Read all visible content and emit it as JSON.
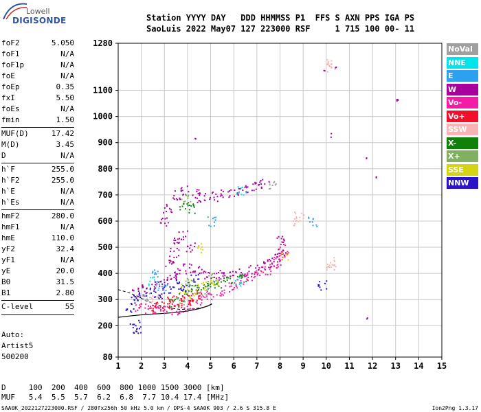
{
  "logo": {
    "line1": "Lowell",
    "line2": "DIGISONDE"
  },
  "header": {
    "labels": "Station YYYY DAY   DDD HHMMSS P1  FFS S AXN PPS IGA PS",
    "values": "SaoLuis 2022 May07 127 223000 RSF     1 715 100 00- 11"
  },
  "params": [
    {
      "name": "foF2",
      "value": "5.050"
    },
    {
      "name": "foF1",
      "value": "N/A"
    },
    {
      "name": "foF1p",
      "value": "N/A"
    },
    {
      "name": "foE",
      "value": "N/A"
    },
    {
      "name": "foEp",
      "value": "0.35"
    },
    {
      "name": "fxI",
      "value": "5.50"
    },
    {
      "name": "foEs",
      "value": "N/A"
    },
    {
      "name": "fmin",
      "value": "1.50"
    },
    {
      "name": "MUF(D)",
      "value": "17.42"
    },
    {
      "name": "M(D)",
      "value": "3.45"
    },
    {
      "name": "D",
      "value": "N/A"
    },
    {
      "name": "h`F",
      "value": "255.0"
    },
    {
      "name": "h`F2",
      "value": "255.0"
    },
    {
      "name": "h`E",
      "value": "N/A"
    },
    {
      "name": "h`Es",
      "value": "N/A"
    },
    {
      "name": "hmF2",
      "value": "280.0"
    },
    {
      "name": "hmF1",
      "value": "N/A"
    },
    {
      "name": "hmE",
      "value": "110.0"
    },
    {
      "name": "yF2",
      "value": "32.4"
    },
    {
      "name": "yF1",
      "value": "N/A"
    },
    {
      "name": "yE",
      "value": "20.0"
    },
    {
      "name": "B0",
      "value": "31.5"
    },
    {
      "name": "B1",
      "value": "2.80"
    },
    {
      "name": "C-level",
      "value": "55"
    }
  ],
  "auto": {
    "line1": "Auto:",
    "line2": "Artist5",
    "line3": "500200"
  },
  "muf_table": {
    "d_line": "D     100  200  400  600  800 1000 1500 3000 [km]",
    "muf_line": "MUF   5.4  5.5  5.7  6.2  6.8  7.7 10.4 17.4 [MHz]"
  },
  "footer": {
    "left": "SAA0K_2022127223000.RSF / 280fx256h 50 kHz 5.0 km / DPS-4 SAA0K 903 / 2.6 S 315.8 E",
    "right": "Ion2Png 1.3.17"
  },
  "legend": [
    {
      "label": "NoVal",
      "color": "#a0a0a0"
    },
    {
      "label": "NNE",
      "color": "#00e4ec"
    },
    {
      "label": "E",
      "color": "#2ea0f0"
    },
    {
      "label": "W",
      "color": "#a8009c"
    },
    {
      "label": "Vo-",
      "color": "#f21ca6"
    },
    {
      "label": "Vo+",
      "color": "#f0102c"
    },
    {
      "label": "SSW",
      "color": "#f8b4b4"
    },
    {
      "label": "X-",
      "color": "#10800a"
    },
    {
      "label": "X+",
      "color": "#80b060"
    },
    {
      "label": "SSE",
      "color": "#d4d414"
    },
    {
      "label": "NNW",
      "color": "#2a14c8"
    }
  ],
  "chart_data": {
    "type": "scatter",
    "xlim": [
      1,
      15
    ],
    "ylim": [
      80,
      1280
    ],
    "x_ticks": [
      "1",
      "2",
      "3",
      "4",
      "5",
      "6",
      "7",
      "8",
      "9",
      "10",
      "11",
      "12",
      "13",
      "14",
      "15"
    ],
    "y_ticks": [
      "80",
      "200",
      "300",
      "400",
      "500",
      "600",
      "700",
      "800",
      "900",
      "1000",
      "1100",
      "1280"
    ],
    "grid": true,
    "legend_position": "right",
    "traces": [
      {
        "name": "Vo-",
        "color": "#f21ca6",
        "points": [
          [
            1.9,
            272
          ],
          [
            2.3,
            268
          ],
          [
            2.7,
            265
          ],
          [
            3.0,
            262
          ],
          [
            3.4,
            262
          ],
          [
            3.8,
            268
          ],
          [
            4.2,
            280
          ],
          [
            4.6,
            298
          ],
          [
            5.0,
            318
          ],
          [
            5.4,
            335
          ],
          [
            5.8,
            350
          ],
          [
            6.2,
            362
          ],
          [
            6.6,
            378
          ],
          [
            7.0,
            395
          ],
          [
            7.4,
            415
          ],
          [
            7.7,
            432
          ],
          [
            7.9,
            450
          ],
          [
            8.05,
            470
          ],
          [
            8.15,
            495
          ]
        ]
      },
      {
        "name": "W",
        "color": "#a8009c",
        "points": [
          [
            1.8,
            330
          ],
          [
            2.2,
            345
          ],
          [
            2.6,
            360
          ],
          [
            3.0,
            370
          ],
          [
            3.3,
            390
          ],
          [
            3.6,
            405
          ],
          [
            4.0,
            420
          ],
          [
            4.4,
            410
          ],
          [
            4.8,
            398
          ],
          [
            5.2,
            395
          ],
          [
            5.6,
            392
          ],
          [
            6.0,
            395
          ],
          [
            6.4,
            405
          ],
          [
            6.8,
            415
          ],
          [
            7.2,
            428
          ],
          [
            7.6,
            442
          ],
          [
            7.9,
            462
          ],
          [
            8.1,
            488
          ],
          [
            8.0,
            530
          ],
          [
            3.2,
            440
          ],
          [
            3.4,
            480
          ],
          [
            3.5,
            520
          ],
          [
            3.8,
            550
          ],
          [
            4.1,
            500
          ],
          [
            3.0,
            600
          ],
          [
            3.1,
            650
          ],
          [
            3.5,
            700
          ],
          [
            3.9,
            720
          ],
          [
            4.3,
            705
          ],
          [
            4.6,
            690
          ],
          [
            5.1,
            695
          ],
          [
            5.6,
            705
          ],
          [
            6.0,
            712
          ],
          [
            6.4,
            722
          ],
          [
            6.9,
            732
          ],
          [
            7.3,
            745
          ]
        ]
      },
      {
        "name": "Vo+",
        "color": "#f0102c",
        "points": [
          [
            2.4,
            270
          ],
          [
            2.8,
            275
          ],
          [
            3.2,
            282
          ],
          [
            3.6,
            288
          ],
          [
            4.0,
            300
          ],
          [
            4.3,
            310
          ],
          [
            4.6,
            320
          ],
          [
            3.3,
            300
          ],
          [
            3.9,
            305
          ]
        ]
      },
      {
        "name": "X-",
        "color": "#10800a",
        "points": [
          [
            3.4,
            290
          ],
          [
            3.8,
            330
          ],
          [
            4.2,
            350
          ],
          [
            4.5,
            340
          ],
          [
            4.9,
            352
          ],
          [
            5.3,
            365
          ],
          [
            5.7,
            372
          ],
          [
            6.3,
            388
          ],
          [
            3.8,
            660
          ],
          [
            4.2,
            650
          ]
        ]
      },
      {
        "name": "NNW",
        "color": "#2a14c8",
        "points": [
          [
            1.5,
            270
          ],
          [
            1.7,
            300
          ],
          [
            2.0,
            310
          ],
          [
            2.4,
            330
          ],
          [
            2.7,
            320
          ],
          [
            3.1,
            338
          ],
          [
            3.5,
            360
          ],
          [
            3.9,
            340
          ],
          [
            4.3,
            380
          ],
          [
            1.7,
            205
          ],
          [
            1.8,
            190
          ],
          [
            9.8,
            355
          ]
        ]
      },
      {
        "name": "SSE",
        "color": "#d4d414",
        "points": [
          [
            3.8,
            345
          ],
          [
            4.2,
            322
          ],
          [
            4.6,
            352
          ],
          [
            5.1,
            372
          ],
          [
            8.2,
            462
          ],
          [
            4.5,
            500
          ]
        ]
      },
      {
        "name": "SSW",
        "color": "#f8b4b4",
        "points": [
          [
            10.2,
            1190
          ],
          [
            10.2,
            1205
          ],
          [
            10.2,
            445
          ],
          [
            10.2,
            425
          ],
          [
            8.8,
            618
          ],
          [
            8.75,
            600
          ],
          [
            2.5,
            300
          ]
        ]
      },
      {
        "name": "X+",
        "color": "#80b060",
        "points": [
          [
            4.1,
            365
          ],
          [
            5.0,
            382
          ],
          [
            3.9,
            690
          ],
          [
            3.7,
            300
          ]
        ]
      },
      {
        "name": "E",
        "color": "#2ea0f0",
        "points": [
          [
            2.5,
            400
          ],
          [
            2.9,
            355
          ],
          [
            9.4,
            600
          ],
          [
            5.0,
            600
          ]
        ]
      },
      {
        "name": "NNE",
        "color": "#00e4ec",
        "points": [
          [
            2.5,
            372
          ],
          [
            6.2,
            372
          ],
          [
            6.3,
            715
          ]
        ]
      },
      {
        "name": "NoVal",
        "color": "#a0a0a0",
        "points": [
          [
            2.2,
            315
          ],
          [
            4.8,
            335
          ],
          [
            7.6,
            742
          ]
        ]
      },
      {
        "name": "isolated",
        "color": "#a8009c",
        "points": [
          [
            9.9,
            1185
          ],
          [
            10.4,
            1190
          ],
          [
            13.05,
            1060
          ],
          [
            13.05,
            1070
          ],
          [
            11.7,
            840
          ],
          [
            12.15,
            770
          ],
          [
            11.75,
            230
          ],
          [
            4.3,
            920
          ],
          [
            10.2,
            930
          ]
        ]
      }
    ],
    "model_curves": [
      {
        "name": "virtual-height",
        "points": [
          [
            1.0,
            232
          ],
          [
            1.6,
            238
          ],
          [
            2.2,
            243
          ],
          [
            2.8,
            246
          ],
          [
            3.4,
            250
          ],
          [
            4.0,
            256
          ],
          [
            4.5,
            265
          ],
          [
            4.9,
            276
          ],
          [
            5.05,
            284
          ]
        ]
      },
      {
        "name": "profile",
        "points": [
          [
            1.0,
            338
          ],
          [
            1.5,
            325
          ],
          [
            1.9,
            310
          ],
          [
            2.2,
            295
          ],
          [
            2.7,
            280
          ],
          [
            3.2,
            268
          ],
          [
            3.7,
            262
          ],
          [
            4.2,
            264
          ],
          [
            4.7,
            270
          ],
          [
            5.05,
            282
          ]
        ]
      }
    ]
  }
}
